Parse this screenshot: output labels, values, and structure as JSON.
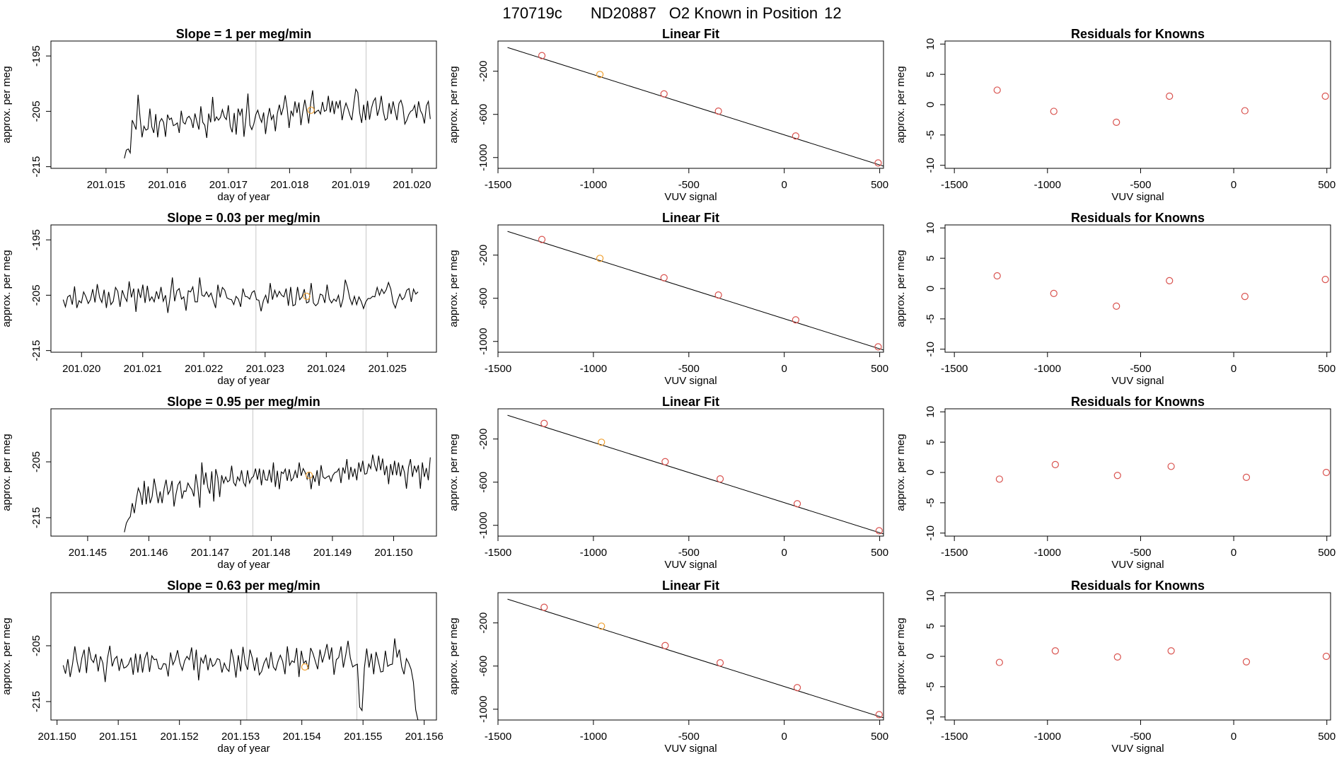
{
  "header": {
    "run_id": "170719c",
    "tank_id": "ND20887",
    "label": "O2 Known in Position",
    "position": "12"
  },
  "colors": {
    "line": "#000000",
    "point": "#d9534f",
    "highlight": "#f0a030",
    "vline": "#c8c8c8"
  },
  "chart_data": [
    {
      "type": "line",
      "row": 0,
      "col": 0,
      "title": "Slope =  1  per meg/min",
      "xlabel": "day of year",
      "ylabel": "approx. per meg",
      "xlim": [
        201.0141,
        201.0204
      ],
      "ylim": [
        -215.3,
        -192.3
      ],
      "xticks": [
        "201.015",
        "201.016",
        "201.017",
        "201.018",
        "201.019",
        "201.020"
      ],
      "xtick_values": [
        201.015,
        201.016,
        201.017,
        201.018,
        201.019,
        201.02
      ],
      "yticks": [
        -195,
        -205,
        -215
      ],
      "series_x_range": [
        201.0153,
        201.0203
      ],
      "series_y": [
        -213.5,
        -212.0,
        -211.8,
        -212.5,
        -206.6,
        -207.4,
        -208.3,
        -202.0,
        -206.1,
        -209.7,
        -207.7,
        -208.4,
        -208.2,
        -204.5,
        -207.8,
        -208.9,
        -205.5,
        -209.7,
        -206.9,
        -206.3,
        -207.0,
        -209.6,
        -205.6,
        -206.5,
        -206.2,
        -207.6,
        -207.4,
        -207.1,
        -208.9,
        -204.9,
        -207.0,
        -207.3,
        -206.2,
        -205.9,
        -206.5,
        -208.0,
        -205.4,
        -206.9,
        -208.3,
        -204.1,
        -207.0,
        -207.5,
        -209.8,
        -205.4,
        -207.0,
        -202.4,
        -206.8,
        -206.0,
        -206.6,
        -206.1,
        -204.7,
        -206.0,
        -206.5,
        -203.9,
        -207.7,
        -208.8,
        -205.3,
        -209.2,
        -204.5,
        -205.7,
        -204.5,
        -209.6,
        -206.2,
        -201.8,
        -207.5,
        -208.3,
        -207.3,
        -205.6,
        -204.8,
        -206.1,
        -207.0,
        -205.2,
        -209.1,
        -206.3,
        -204.4,
        -206.5,
        -205.7,
        -208.6,
        -205.4,
        -203.8,
        -205.7,
        -204.4,
        -202.1,
        -204.4,
        -208.0,
        -204.9,
        -205.8,
        -203.2,
        -205.3,
        -203.4,
        -207.5,
        -205.0,
        -202.9,
        -204.9,
        -207.2,
        -203.5,
        -201.2,
        -205.4,
        -205.0,
        -204.8,
        -205.5,
        -203.3,
        -205.0,
        -204.8,
        -202.2,
        -205.2,
        -203.1,
        -205.5,
        -203.2,
        -204.4,
        -203.0,
        -206.6,
        -204.7,
        -203.5,
        -204.5,
        -205.7,
        -206.6,
        -203.6,
        -201.0,
        -201.6,
        -205.3,
        -207.1,
        -203.8,
        -206.6,
        -203.1,
        -206.5,
        -204.4,
        -203.2,
        -202.6,
        -205.8,
        -204.5,
        -202.2,
        -205.0,
        -206.6,
        -206.3,
        -203.5,
        -205.5,
        -203.2,
        -204.9,
        -206.6,
        -203.6,
        -203.0,
        -204.2,
        -207.3,
        -206.6,
        -205.6,
        -205.0,
        -204.8,
        -203.9,
        -206.2,
        -203.2,
        -204.9,
        -205.6,
        -207.2,
        -204.0,
        -203.2,
        -206.4
      ],
      "vlines": [
        201.01745,
        201.01925
      ],
      "highlight": {
        "x": 201.01835,
        "y": -204.8
      }
    },
    {
      "type": "line",
      "row": 1,
      "col": 0,
      "title": "Slope =  0.03  per meg/min",
      "xlabel": "day of year",
      "ylabel": "approx. per meg",
      "xlim": [
        201.0195,
        201.0258
      ],
      "ylim": [
        -215.3,
        -192.3
      ],
      "xticks": [
        "201.020",
        "201.021",
        "201.022",
        "201.023",
        "201.024",
        "201.025"
      ],
      "xtick_values": [
        201.02,
        201.021,
        201.022,
        201.023,
        201.024,
        201.025
      ],
      "yticks": [
        -195,
        -205,
        -215
      ],
      "series_x_range": [
        201.0197,
        201.0255
      ],
      "series_y": [
        -205.8,
        -207.1,
        -205.3,
        -205.0,
        -206.7,
        -203.4,
        -207.3,
        -206.0,
        -206.4,
        -204.4,
        -205.3,
        -206.5,
        -205.8,
        -203.9,
        -206.3,
        -203.0,
        -205.4,
        -206.3,
        -204.0,
        -207.3,
        -204.4,
        -206.7,
        -206.1,
        -203.6,
        -204.3,
        -207.1,
        -204.1,
        -205.3,
        -206.1,
        -202.5,
        -205.4,
        -203.8,
        -208.0,
        -203.8,
        -205.5,
        -203.1,
        -206.4,
        -203.3,
        -206.0,
        -205.3,
        -206.2,
        -204.3,
        -205.7,
        -203.5,
        -206.1,
        -205.0,
        -208.2,
        -205.3,
        -201.8,
        -206.1,
        -204.2,
        -203.8,
        -205.7,
        -205.3,
        -207.8,
        -204.2,
        -204.4,
        -203.5,
        -206.2,
        -206.2,
        -201.8,
        -205.0,
        -205.2,
        -204.4,
        -205.3,
        -204.6,
        -206.0,
        -207.3,
        -203.1,
        -205.4,
        -203.6,
        -204.1,
        -205.5,
        -205.7,
        -205.8,
        -206.7,
        -205.2,
        -205.7,
        -207.1,
        -203.8,
        -205.2,
        -205.3,
        -205.7,
        -204.5,
        -204.2,
        -205.8,
        -205.9,
        -207.9,
        -206.0,
        -205.0,
        -206.5,
        -202.8,
        -205.8,
        -204.1,
        -205.3,
        -204.3,
        -205.0,
        -205.3,
        -203.8,
        -206.9,
        -203.5,
        -206.9,
        -206.7,
        -203.5,
        -205.8,
        -205.3,
        -203.9,
        -206.4,
        -206.2,
        -202.8,
        -206.4,
        -206.9,
        -206.5,
        -204.8,
        -205.0,
        -206.4,
        -203.1,
        -205.7,
        -206.4,
        -205.7,
        -206.1,
        -205.0,
        -207.2,
        -205.7,
        -202.2,
        -203.6,
        -205.6,
        -206.7,
        -205.2,
        -206.7,
        -205.3,
        -206.1,
        -207.4,
        -206.2,
        -205.6,
        -205.6,
        -205.2,
        -205.3,
        -203.6,
        -205.0,
        -203.9,
        -204.7,
        -204.0,
        -202.7,
        -203.9,
        -206.3,
        -207.3,
        -205.9,
        -204.8,
        -205.8,
        -205.4,
        -204.1,
        -203.8,
        -206.2,
        -203.9,
        -204.8,
        -204.4
      ],
      "vlines": [
        201.02285,
        201.02465
      ],
      "highlight": {
        "x": 201.02368,
        "y": -205.2
      }
    },
    {
      "type": "line",
      "row": 2,
      "col": 0,
      "title": "Slope =  0.95  per meg/min",
      "xlabel": "day of year",
      "ylabel": "approx. per meg",
      "xlim": [
        201.1444,
        201.1507
      ],
      "ylim": [
        -218.3,
        -195.5
      ],
      "xticks": [
        "201.145",
        "201.146",
        "201.147",
        "201.148",
        "201.149",
        "201.150"
      ],
      "xtick_values": [
        201.145,
        201.146,
        201.147,
        201.148,
        201.149,
        201.15
      ],
      "yticks": [
        -205,
        -215
      ],
      "series_x_range": [
        201.1456,
        201.1506
      ],
      "series_y": [
        -217.6,
        -216.0,
        -215.3,
        -214.8,
        -212.4,
        -214.2,
        -211.7,
        -209.7,
        -210.6,
        -212.7,
        -208.4,
        -212.6,
        -209.4,
        -212.4,
        -211.2,
        -208.0,
        -210.0,
        -212.4,
        -210.3,
        -212.4,
        -209.8,
        -208.2,
        -210.8,
        -210.1,
        -208.4,
        -213.0,
        -210.8,
        -209.1,
        -208.5,
        -211.6,
        -210.2,
        -210.3,
        -208.8,
        -209.5,
        -210.0,
        -211.2,
        -207.2,
        -209.6,
        -213.2,
        -205.1,
        -209.1,
        -206.9,
        -209.6,
        -210.7,
        -206.7,
        -212.1,
        -206.3,
        -207.8,
        -211.3,
        -207.4,
        -208.8,
        -207.7,
        -208.6,
        -208.3,
        -205.7,
        -208.7,
        -209.3,
        -207.7,
        -208.4,
        -206.5,
        -208.7,
        -209.4,
        -206.5,
        -208.8,
        -207.9,
        -207.6,
        -206.2,
        -208.2,
        -206.2,
        -209.2,
        -206.4,
        -208.2,
        -208.3,
        -206.4,
        -208.7,
        -205.1,
        -209.5,
        -206.6,
        -209.9,
        -206.8,
        -207.1,
        -206.3,
        -208.4,
        -206.3,
        -208.4,
        -207.9,
        -206.6,
        -207.9,
        -205.1,
        -207.5,
        -206.2,
        -206.9,
        -208.1,
        -206.8,
        -209.9,
        -207.4,
        -208.6,
        -206.5,
        -209.3,
        -205.6,
        -207.7,
        -208.0,
        -207.7,
        -207.5,
        -208.5,
        -207.4,
        -206.9,
        -206.8,
        -206.2,
        -208.8,
        -206.0,
        -207.1,
        -204.5,
        -208.2,
        -205.9,
        -207.7,
        -206.2,
        -208.3,
        -205.1,
        -206.8,
        -204.8,
        -207.2,
        -207.1,
        -205.4,
        -206.2,
        -203.7,
        -205.6,
        -206.7,
        -203.9,
        -206.5,
        -204.4,
        -207.4,
        -205.7,
        -209.0,
        -205.4,
        -207.4,
        -204.8,
        -207.4,
        -205.1,
        -207.6,
        -205.6,
        -206.9,
        -209.8,
        -206.0,
        -204.5,
        -207.7,
        -205.7,
        -206.8,
        -205.6,
        -209.8,
        -205.1,
        -207.7,
        -206.1,
        -208.3,
        -204.2
      ],
      "vlines": [
        201.1477,
        201.1495
      ],
      "highlight": {
        "x": 201.14862,
        "y": -207.4
      }
    },
    {
      "type": "line",
      "row": 3,
      "col": 0,
      "title": "Slope =  0.63  per meg/min",
      "xlabel": "day of year",
      "ylabel": "approx. per meg",
      "xlim": [
        201.1499,
        201.1562
      ],
      "ylim": [
        -218.3,
        -195.5
      ],
      "xticks": [
        "201.150",
        "201.151",
        "201.152",
        "201.153",
        "201.154",
        "201.155",
        "201.156"
      ],
      "xtick_values": [
        201.15,
        201.151,
        201.152,
        201.153,
        201.154,
        201.155,
        201.156
      ],
      "yticks": [
        -205,
        -215
      ],
      "series_x_range": [
        201.1501,
        201.1559
      ],
      "series_y": [
        -208.5,
        -210.0,
        -207.4,
        -210.6,
        -208.3,
        -205.1,
        -207.9,
        -209.8,
        -207.2,
        -205.7,
        -209.9,
        -205.2,
        -207.4,
        -208.0,
        -206.5,
        -209.6,
        -206.9,
        -208.1,
        -211.5,
        -207.2,
        -205.0,
        -208.7,
        -207.4,
        -206.9,
        -209.5,
        -207.3,
        -209.0,
        -208.8,
        -208.3,
        -207.1,
        -210.2,
        -206.4,
        -209.8,
        -206.5,
        -209.8,
        -207.2,
        -206.1,
        -209.7,
        -206.8,
        -207.5,
        -207.4,
        -209.1,
        -209.2,
        -208.2,
        -208.3,
        -210.5,
        -206.2,
        -208.4,
        -207.5,
        -205.8,
        -208.1,
        -209.4,
        -207.7,
        -206.9,
        -207.5,
        -205.3,
        -209.4,
        -205.7,
        -211.2,
        -207.2,
        -208.1,
        -206.6,
        -209.4,
        -207.2,
        -208.7,
        -208.3,
        -207.3,
        -207.5,
        -209.8,
        -208.1,
        -209.1,
        -209.6,
        -205.6,
        -207.6,
        -210.7,
        -206.7,
        -209.6,
        -205.2,
        -208.2,
        -209.3,
        -205.7,
        -207.2,
        -209.5,
        -207.1,
        -210.2,
        -209.6,
        -208.1,
        -207.2,
        -209.1,
        -206.1,
        -208.8,
        -209.4,
        -207.8,
        -206.7,
        -207.8,
        -210.1,
        -205.1,
        -208.5,
        -207.7,
        -208.0,
        -205.4,
        -210.6,
        -205.9,
        -208.1,
        -207.7,
        -209.2,
        -205.4,
        -206.4,
        -207.8,
        -209.2,
        -205.7,
        -208.0,
        -206.5,
        -204.7,
        -207.5,
        -205.3,
        -210.2,
        -207.5,
        -207.1,
        -205.1,
        -208.9,
        -206.7,
        -204.1,
        -207.2,
        -208.8,
        -208.5,
        -208.3,
        -216.0,
        -216.6,
        -209.0,
        -205.5,
        -208.9,
        -206.4,
        -210.1,
        -206.1,
        -207.8,
        -209.7,
        -209.6,
        -205.9,
        -208.7,
        -208.4,
        -208.3,
        -203.7,
        -207.1,
        -205.7,
        -208.8,
        -210.1,
        -207.3,
        -208.1,
        -209.2,
        -211.5,
        -216.5,
        -218.4
      ],
      "vlines": [
        201.1531,
        201.1549
      ],
      "highlight": {
        "x": 201.15405,
        "y": -208.8
      }
    },
    {
      "type": "scatter",
      "row": 0,
      "col": 1,
      "title": "Linear Fit",
      "xlabel": "VUV signal",
      "ylabel": "approx. per meg",
      "xlim": [
        -1500,
        520
      ],
      "ylim": [
        -1100,
        80
      ],
      "xticks": [
        -1500,
        -1000,
        -500,
        0,
        500
      ],
      "yticks": [
        -200,
        -600,
        -1000
      ],
      "x": [
        -1270,
        -966,
        -630,
        -345,
        60,
        492
      ],
      "y": [
        -55,
        -230,
        -410,
        -570,
        -800,
        -1050
      ],
      "highlight_index": 1,
      "fit": {
        "x": [
          -1450,
          520
        ],
        "y": [
          20,
          -1080
        ]
      }
    },
    {
      "type": "scatter",
      "row": 1,
      "col": 1,
      "title": "Linear Fit",
      "xlabel": "VUV signal",
      "ylabel": "approx. per meg",
      "xlim": [
        -1500,
        520
      ],
      "ylim": [
        -1100,
        80
      ],
      "xticks": [
        -1500,
        -1000,
        -500,
        0,
        500
      ],
      "yticks": [
        -200,
        -600,
        -1000
      ],
      "x": [
        -1270,
        -966,
        -630,
        -345,
        60,
        492
      ],
      "y": [
        -55,
        -230,
        -410,
        -570,
        -800,
        -1050
      ],
      "highlight_index": 1,
      "fit": {
        "x": [
          -1450,
          520
        ],
        "y": [
          20,
          -1080
        ]
      }
    },
    {
      "type": "scatter",
      "row": 2,
      "col": 1,
      "title": "Linear Fit",
      "xlabel": "VUV signal",
      "ylabel": "approx. per meg",
      "xlim": [
        -1500,
        520
      ],
      "ylim": [
        -1100,
        80
      ],
      "xticks": [
        -1500,
        -1000,
        -500,
        0,
        500
      ],
      "yticks": [
        -200,
        -600,
        -1000
      ],
      "x": [
        -1258,
        -958,
        -624,
        -336,
        68,
        497
      ],
      "y": [
        -55,
        -230,
        -410,
        -570,
        -800,
        -1050
      ],
      "highlight_index": 1,
      "fit": {
        "x": [
          -1450,
          520
        ],
        "y": [
          20,
          -1080
        ]
      }
    },
    {
      "type": "scatter",
      "row": 3,
      "col": 1,
      "title": "Linear Fit",
      "xlabel": "VUV signal",
      "ylabel": "approx. per meg",
      "xlim": [
        -1500,
        520
      ],
      "ylim": [
        -1100,
        80
      ],
      "xticks": [
        -1500,
        -1000,
        -500,
        0,
        500
      ],
      "yticks": [
        -200,
        -600,
        -1000
      ],
      "x": [
        -1258,
        -958,
        -624,
        -336,
        68,
        497
      ],
      "y": [
        -55,
        -230,
        -410,
        -570,
        -800,
        -1050
      ],
      "highlight_index": 1,
      "fit": {
        "x": [
          -1450,
          520
        ],
        "y": [
          20,
          -1080
        ]
      }
    },
    {
      "type": "scatter",
      "row": 0,
      "col": 2,
      "title": "Residuals for Knowns",
      "xlabel": "VUV signal",
      "ylabel": "approx. per meg",
      "xlim": [
        -1550,
        520
      ],
      "ylim": [
        -10.5,
        10.5
      ],
      "xticks": [
        -1500,
        -1000,
        -500,
        0,
        500
      ],
      "yticks": [
        10,
        5,
        0,
        -5,
        -10
      ],
      "x": [
        -1270,
        -966,
        -630,
        -345,
        60,
        492
      ],
      "y": [
        2.4,
        -1.1,
        -2.9,
        1.4,
        -1.0,
        1.4
      ]
    },
    {
      "type": "scatter",
      "row": 1,
      "col": 2,
      "title": "Residuals for Knowns",
      "xlabel": "VUV signal",
      "ylabel": "approx. per meg",
      "xlim": [
        -1550,
        520
      ],
      "ylim": [
        -10.5,
        10.5
      ],
      "xticks": [
        -1500,
        -1000,
        -500,
        0,
        500
      ],
      "yticks": [
        10,
        5,
        0,
        -5,
        -10
      ],
      "x": [
        -1270,
        -966,
        -630,
        -345,
        60,
        492
      ],
      "y": [
        2.1,
        -0.8,
        -2.9,
        1.3,
        -1.3,
        1.5
      ]
    },
    {
      "type": "scatter",
      "row": 2,
      "col": 2,
      "title": "Residuals for Knowns",
      "xlabel": "VUV signal",
      "ylabel": "approx. per meg",
      "xlim": [
        -1550,
        520
      ],
      "ylim": [
        -10.5,
        10.5
      ],
      "xticks": [
        -1500,
        -1000,
        -500,
        0,
        500
      ],
      "yticks": [
        10,
        5,
        0,
        -5,
        -10
      ],
      "x": [
        -1258,
        -958,
        -624,
        -336,
        68,
        497
      ],
      "y": [
        -1.1,
        1.3,
        -0.5,
        1.0,
        -0.8,
        0.0
      ]
    },
    {
      "type": "scatter",
      "row": 3,
      "col": 2,
      "title": "Residuals for Knowns",
      "xlabel": "VUV signal",
      "ylabel": "approx. per meg",
      "xlim": [
        -1550,
        520
      ],
      "ylim": [
        -10.5,
        10.5
      ],
      "xticks": [
        -1500,
        -1000,
        -500,
        0,
        500
      ],
      "yticks": [
        10,
        5,
        0,
        -5,
        -10
      ],
      "x": [
        -1258,
        -958,
        -624,
        -336,
        68,
        497
      ],
      "y": [
        -1.0,
        0.9,
        -0.1,
        0.9,
        -0.9,
        0.0
      ]
    }
  ]
}
